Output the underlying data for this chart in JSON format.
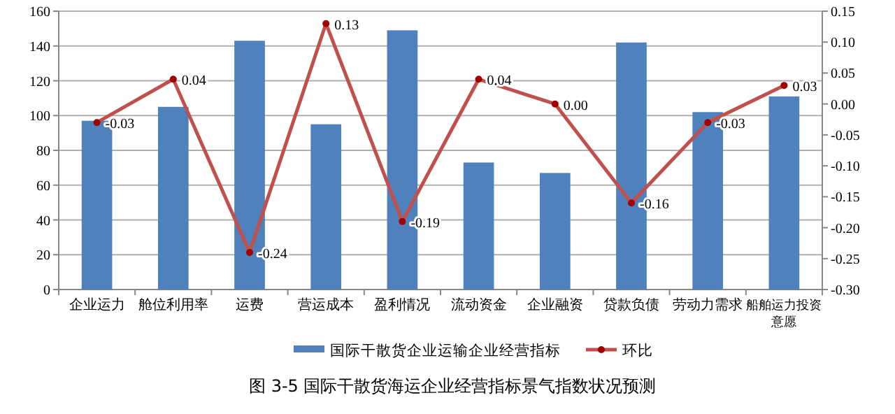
{
  "chart_data": {
    "type": "bar",
    "categories": [
      "企业运力",
      "舱位利用率",
      "运费",
      "营运成本",
      "盈利情况",
      "流动资金",
      "企业融资",
      "贷款负债",
      "劳动力需求",
      "船舶运力投资意愿"
    ],
    "series": [
      {
        "name": "国际干散货企业运输企业经营指标",
        "color": "#4f81bd",
        "values": [
          97,
          105,
          143,
          95,
          149,
          73,
          67,
          142,
          102,
          111
        ]
      },
      {
        "name": "环比",
        "type": "line",
        "axis": "y2",
        "color": "#c0504d",
        "marker": "circle",
        "values": [
          -0.03,
          0.04,
          -0.24,
          0.13,
          -0.19,
          0.04,
          0.0,
          -0.16,
          -0.03,
          0.03
        ],
        "value_labels": [
          "-0.03",
          "0.04",
          "-0.24",
          "0.13",
          "-0.19",
          "0.04",
          "0.00",
          "-0.16",
          "-0.03",
          "0.03"
        ]
      }
    ],
    "ylim": [
      0,
      160
    ],
    "yticks": [
      0,
      20,
      40,
      60,
      80,
      100,
      120,
      140,
      160
    ],
    "y2lim": [
      -0.3,
      0.15
    ],
    "y2ticks": [
      {
        "value": -0.3,
        "label": "-0.30"
      },
      {
        "value": -0.25,
        "label": "-0.25"
      },
      {
        "value": -0.2,
        "label": "-0.20"
      },
      {
        "value": -0.15,
        "label": "-0.15"
      },
      {
        "value": -0.1,
        "label": "-0.10"
      },
      {
        "value": -0.05,
        "label": "-0.05"
      },
      {
        "value": 0,
        "label": "0.00"
      },
      {
        "value": 0.05,
        "label": "0.05"
      },
      {
        "value": 0.1,
        "label": "0.10"
      },
      {
        "value": 0.15,
        "label": "0.15"
      }
    ],
    "grid": "y",
    "legend": "bottom",
    "annotations": [
      "图 3-5 国际干散货海运企业经营指标景气指数状况预测"
    ]
  }
}
